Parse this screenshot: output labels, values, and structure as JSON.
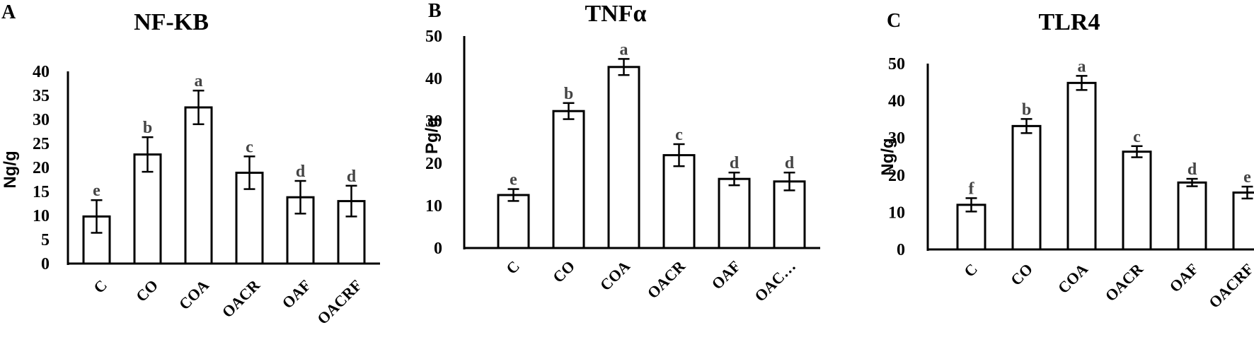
{
  "figure": {
    "panels": [
      {
        "letter": "A"
      },
      {
        "letter": "B"
      },
      {
        "letter": "C"
      }
    ]
  },
  "chart_data": [
    {
      "type": "bar",
      "title": "NF-KB",
      "ylabel": "Ng/g",
      "xlabel": "",
      "ylim": [
        0,
        40
      ],
      "yticks": [
        0,
        5,
        10,
        15,
        20,
        25,
        30,
        35,
        40
      ],
      "categories": [
        "C",
        "CO",
        "COA",
        "OACR",
        "OAF",
        "OACRF"
      ],
      "values": [
        9.8,
        22.7,
        32.5,
        18.9,
        13.8,
        13.0
      ],
      "errors": [
        3.4,
        3.6,
        3.5,
        3.4,
        3.4,
        3.2
      ],
      "letters": [
        "e",
        "b",
        "a",
        "c",
        "d",
        "d"
      ],
      "bar_fill": "#ffffff",
      "bar_stroke": "#000000",
      "grid": false,
      "legend": "none"
    },
    {
      "type": "bar",
      "title": "TNFα",
      "ylabel": "Pg/g",
      "xlabel": "",
      "ylim": [
        0,
        50
      ],
      "yticks": [
        0,
        10,
        20,
        30,
        40,
        50
      ],
      "categories": [
        "C",
        "CO",
        "COA",
        "OACR",
        "OAF",
        "OAC…"
      ],
      "values": [
        12.5,
        32.3,
        42.7,
        21.9,
        16.3,
        15.7
      ],
      "errors": [
        1.4,
        1.9,
        1.9,
        2.6,
        1.5,
        2.1
      ],
      "letters": [
        "e",
        "b",
        "a",
        "c",
        "d",
        "d"
      ],
      "bar_fill": "#ffffff",
      "bar_stroke": "#000000",
      "grid": false,
      "legend": "none"
    },
    {
      "type": "bar",
      "title": "TLR4",
      "ylabel": "Ng/g",
      "xlabel": "",
      "ylim": [
        0,
        50
      ],
      "yticks": [
        0,
        10,
        20,
        30,
        40,
        50
      ],
      "categories": [
        "C",
        "CO",
        "COA",
        "OACR",
        "OAF",
        "OACRF"
      ],
      "values": [
        12.0,
        33.2,
        44.8,
        26.3,
        18.0,
        15.3
      ],
      "errors": [
        1.8,
        1.9,
        1.9,
        1.5,
        1.0,
        1.6
      ],
      "letters": [
        "f",
        "b",
        "a",
        "c",
        "d",
        "e"
      ],
      "bar_fill": "#ffffff",
      "bar_stroke": "#000000",
      "grid": false,
      "legend": "none"
    }
  ]
}
